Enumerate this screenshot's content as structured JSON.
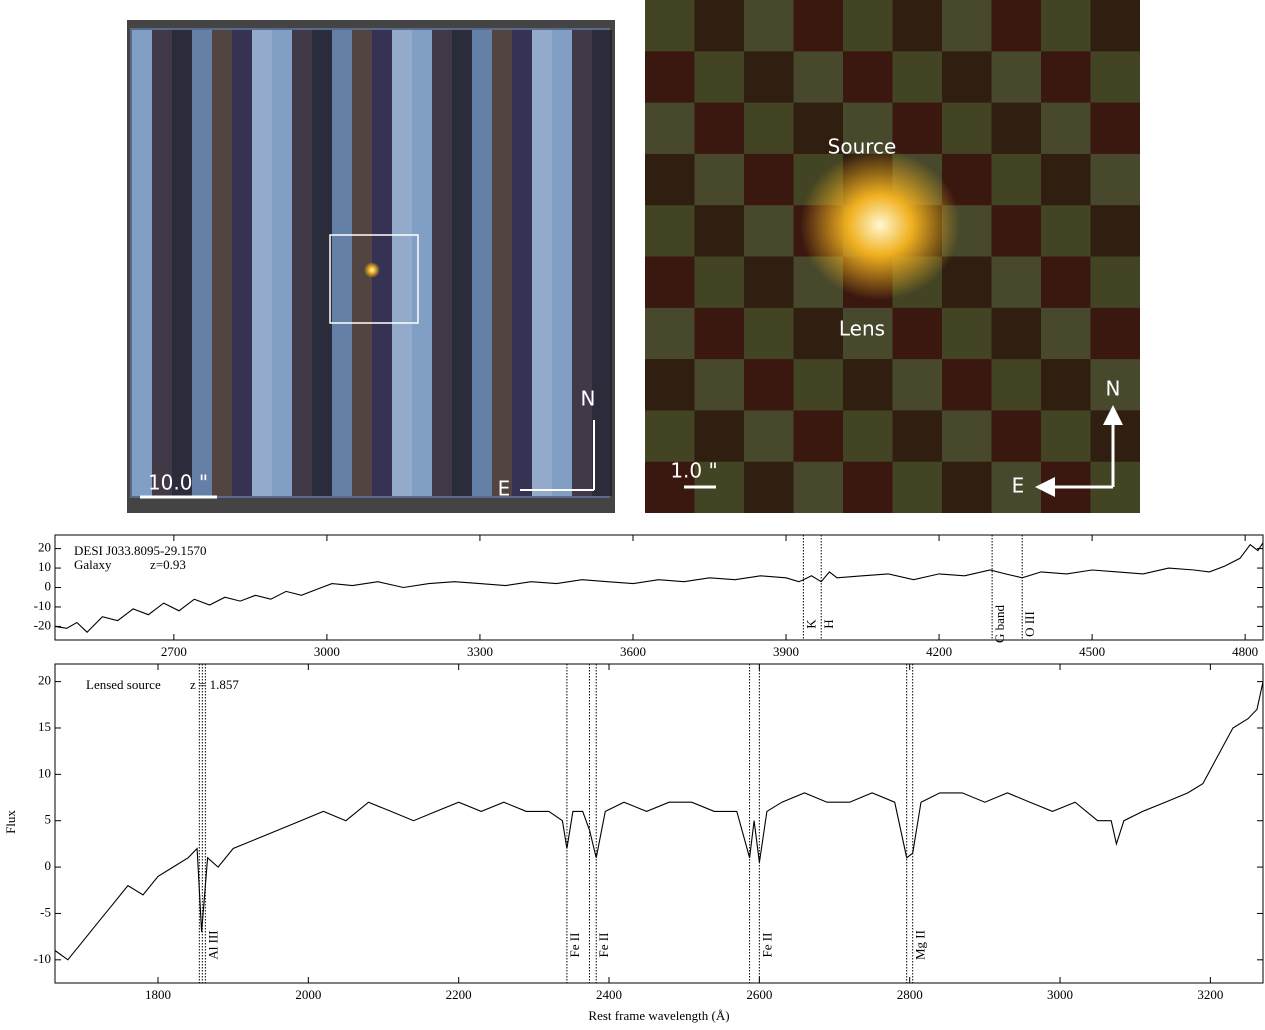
{
  "images": [
    {
      "scale_label": "10.0 \"",
      "north": "N",
      "east": "E"
    },
    {
      "scale_label": "1.0 \"",
      "north": "N",
      "east": "E",
      "source": "Source",
      "lens": "Lens"
    }
  ],
  "chart_data": [
    {
      "type": "line",
      "title": "DESI J033.8095-29.1570",
      "object": "Galaxy",
      "redshift": "z=0.93",
      "xlim": [
        2467,
        4835
      ],
      "ylim": [
        -27,
        27
      ],
      "xticks": [
        2700,
        3000,
        3300,
        3600,
        3900,
        4200,
        4500,
        4800
      ],
      "yticks": [
        -20,
        -10,
        0,
        10,
        20
      ],
      "color": "#000000",
      "x": [
        2467,
        2490,
        2510,
        2530,
        2560,
        2590,
        2620,
        2650,
        2680,
        2710,
        2740,
        2770,
        2800,
        2830,
        2860,
        2890,
        2920,
        2950,
        2980,
        3010,
        3050,
        3100,
        3150,
        3200,
        3250,
        3300,
        3350,
        3400,
        3450,
        3500,
        3550,
        3600,
        3650,
        3700,
        3750,
        3800,
        3850,
        3900,
        3925,
        3934,
        3950,
        3969,
        3985,
        4000,
        4050,
        4100,
        4150,
        4200,
        4250,
        4300,
        4330,
        4363,
        4400,
        4450,
        4500,
        4550,
        4600,
        4650,
        4700,
        4730,
        4760,
        4790,
        4810,
        4825,
        4835
      ],
      "values": [
        -20,
        -21,
        -18,
        -23,
        -15,
        -17,
        -11,
        -14,
        -8,
        -12,
        -6,
        -9,
        -5,
        -7,
        -4,
        -6,
        -2,
        -4,
        -1,
        2,
        1,
        3,
        0,
        2,
        3,
        2,
        1,
        3,
        2,
        4,
        3,
        2,
        4,
        3,
        5,
        4,
        6,
        5,
        3,
        4,
        6,
        3,
        8,
        5,
        6,
        7,
        4,
        7,
        6,
        9,
        7,
        5,
        8,
        7,
        9,
        8,
        7,
        10,
        9,
        8,
        11,
        15,
        22,
        19,
        23
      ],
      "lines": [
        {
          "label": "K",
          "x": [
            3934
          ]
        },
        {
          "label": "H",
          "x": [
            3969
          ]
        },
        {
          "label": "G band",
          "x": [
            4304
          ]
        },
        {
          "label": "O III",
          "x": [
            4363
          ]
        }
      ]
    },
    {
      "type": "line",
      "title": "Lensed source",
      "redshift": "z = 1.857",
      "xlabel": "Rest frame wavelength (Å)",
      "ylabel": "Flux",
      "xlim": [
        1663,
        3270
      ],
      "ylim": [
        -12.5,
        21.9
      ],
      "xticks": [
        1800,
        2000,
        2200,
        2400,
        2600,
        2800,
        3000,
        3200
      ],
      "yticks": [
        -10,
        -5,
        0,
        5,
        10,
        15,
        20
      ],
      "color": "#000000",
      "x": [
        1663,
        1680,
        1700,
        1720,
        1740,
        1760,
        1780,
        1800,
        1820,
        1840,
        1852,
        1858,
        1866,
        1880,
        1900,
        1930,
        1960,
        1990,
        2020,
        2050,
        2080,
        2110,
        2140,
        2170,
        2200,
        2230,
        2260,
        2290,
        2320,
        2338,
        2344,
        2352,
        2365,
        2374,
        2383,
        2395,
        2420,
        2450,
        2480,
        2510,
        2540,
        2570,
        2587,
        2593,
        2600,
        2610,
        2630,
        2660,
        2690,
        2720,
        2750,
        2780,
        2796,
        2804,
        2815,
        2840,
        2870,
        2900,
        2930,
        2960,
        2990,
        3020,
        3050,
        3068,
        3075,
        3085,
        3110,
        3140,
        3170,
        3190,
        3210,
        3230,
        3250,
        3262,
        3270
      ],
      "values": [
        -9,
        -10,
        -8,
        -6,
        -4,
        -2,
        -3,
        -1,
        0,
        1,
        2,
        -7,
        1,
        0,
        2,
        3,
        4,
        5,
        6,
        5,
        7,
        6,
        5,
        6,
        7,
        6,
        7,
        6,
        6,
        5,
        2,
        6,
        6,
        4,
        1,
        6,
        7,
        6,
        7,
        7,
        6,
        6,
        1,
        5,
        0.5,
        6,
        7,
        8,
        7,
        7,
        8,
        7,
        1,
        1.5,
        7,
        8,
        8,
        7,
        8,
        7,
        6,
        7,
        5,
        5,
        2.5,
        5,
        6,
        7,
        8,
        9,
        12,
        15,
        16,
        17,
        20
      ],
      "lines": [
        {
          "label": "Al III",
          "x": [
            1855,
            1859,
            1863
          ]
        },
        {
          "label": "Fe II",
          "x": [
            2344
          ]
        },
        {
          "label": "Fe II",
          "x": [
            2374,
            2383
          ]
        },
        {
          "label": "Fe II",
          "x": [
            2587,
            2600
          ]
        },
        {
          "label": "Mg II",
          "x": [
            2796,
            2804
          ]
        }
      ]
    }
  ]
}
